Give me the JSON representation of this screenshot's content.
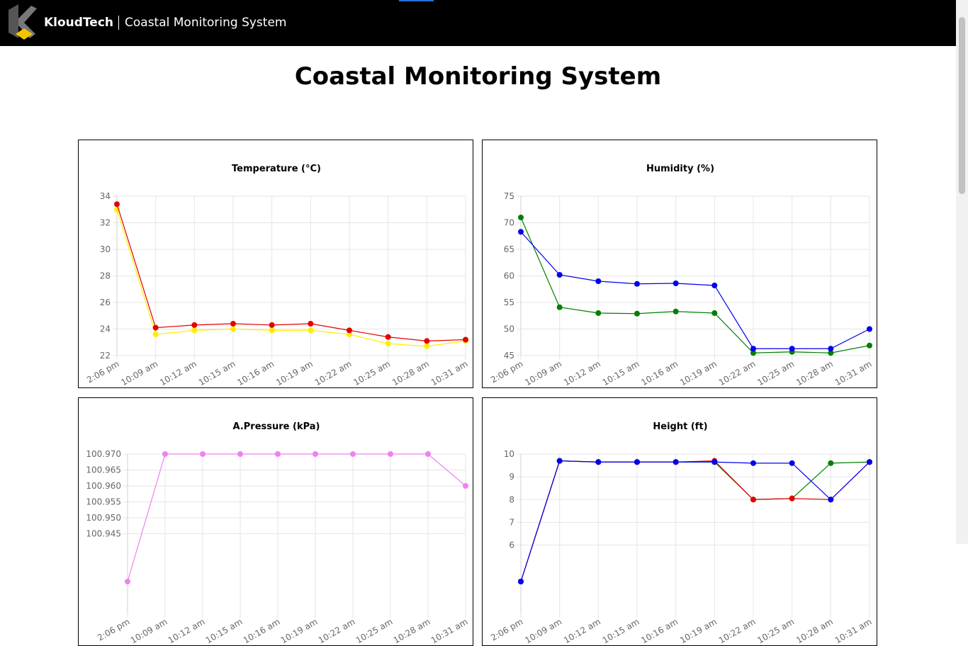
{
  "header": {
    "brand": "KloudTech",
    "app": "Coastal Monitoring System"
  },
  "page_title": "Coastal Monitoring System",
  "chart_data": [
    {
      "type": "line",
      "title": "Temperature (°C)",
      "categories": [
        "2:06 pm",
        "10:09 am",
        "10:12 am",
        "10:15 am",
        "10:16 am",
        "10:19 am",
        "10:22 am",
        "10:25 am",
        "10:28 am",
        "10:31 am"
      ],
      "series": [
        {
          "color": "#ffee00",
          "values": [
            33.0,
            23.6,
            23.9,
            24.0,
            23.9,
            23.9,
            23.6,
            22.9,
            22.7,
            23.1
          ]
        },
        {
          "color": "#e60000",
          "values": [
            33.4,
            24.1,
            24.3,
            24.4,
            24.3,
            24.4,
            23.9,
            23.4,
            23.1,
            23.2
          ]
        }
      ],
      "ylim": [
        22,
        34
      ],
      "yticks": [
        22,
        24,
        26,
        28,
        30,
        32,
        34
      ],
      "grid": true
    },
    {
      "type": "line",
      "title": "Humidity (%)",
      "categories": [
        "2:06 pm",
        "10:09 am",
        "10:12 am",
        "10:15 am",
        "10:16 am",
        "10:19 am",
        "10:22 am",
        "10:25 am",
        "10:28 am",
        "10:31 am"
      ],
      "series": [
        {
          "color": "#008000",
          "values": [
            71.0,
            54.1,
            53.0,
            52.9,
            53.3,
            53.0,
            45.5,
            45.7,
            45.5,
            46.9
          ]
        },
        {
          "color": "#0000ee",
          "values": [
            68.3,
            60.2,
            59.0,
            58.5,
            58.6,
            58.2,
            46.3,
            46.3,
            46.3,
            50.0
          ]
        }
      ],
      "ylim": [
        45,
        75
      ],
      "yticks": [
        45,
        50,
        55,
        60,
        65,
        70,
        75
      ],
      "grid": true
    },
    {
      "type": "line",
      "title": "A.Pressure (kPa)",
      "categories": [
        "2:06 pm",
        "10:09 am",
        "10:12 am",
        "10:15 am",
        "10:16 am",
        "10:19 am",
        "10:22 am",
        "10:25 am",
        "10:28 am",
        "10:31 am"
      ],
      "series": [
        {
          "color": "#ee82ee",
          "values": [
            100.93,
            100.97,
            100.97,
            100.97,
            100.97,
            100.97,
            100.97,
            100.97,
            100.97,
            100.96
          ]
        }
      ],
      "ylim": [
        100.92,
        100.97
      ],
      "yticks": [
        {
          "value": 100.945,
          "label": "100.945"
        },
        {
          "value": 100.95,
          "label": "100.950"
        },
        {
          "value": 100.955,
          "label": "100.955"
        },
        {
          "value": 100.96,
          "label": "100.960"
        },
        {
          "value": 100.965,
          "label": "100.965"
        },
        {
          "value": 100.97,
          "label": "100.970"
        }
      ],
      "grid": true
    },
    {
      "type": "line",
      "title": "Height (ft)",
      "categories": [
        "2:06 pm",
        "10:09 am",
        "10:12 am",
        "10:15 am",
        "10:16 am",
        "10:19 am",
        "10:22 am",
        "10:25 am",
        "10:28 am",
        "10:31 am"
      ],
      "series": [
        {
          "color": "#008000",
          "values": [
            4.4,
            9.7,
            9.65,
            9.65,
            9.65,
            9.65,
            8.0,
            8.05,
            9.6,
            9.65
          ]
        },
        {
          "color": "#e60000",
          "values": [
            4.4,
            9.7,
            9.65,
            9.65,
            9.65,
            9.7,
            8.0,
            8.05,
            8.0,
            9.65
          ]
        },
        {
          "color": "#0000ee",
          "values": [
            4.4,
            9.7,
            9.65,
            9.65,
            9.65,
            9.65,
            9.6,
            9.6,
            8.0,
            9.65
          ]
        }
      ],
      "ylim": [
        3,
        10
      ],
      "yticks": [
        6,
        7,
        8,
        9,
        10
      ],
      "grid": true
    }
  ]
}
